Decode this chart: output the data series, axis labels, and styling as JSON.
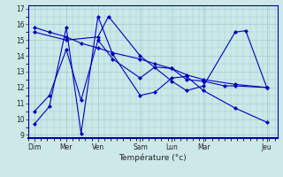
{
  "xlabel": "Température (°c)",
  "background_color": "#cce8e8",
  "grid_color": "#99cccc",
  "line_color": "#0000bb",
  "ylim": [
    8.8,
    17.2
  ],
  "yticks": [
    9,
    10,
    11,
    12,
    13,
    14,
    15,
    16,
    17
  ],
  "day_labels": [
    "Dim",
    "Mer",
    "Ven",
    "Sam",
    "Lun",
    "Mar",
    "Jeu"
  ],
  "day_positions": [
    0,
    15,
    30,
    50,
    65,
    80,
    110
  ],
  "xlim": [
    -3,
    115
  ],
  "series": [
    {
      "x": [
        0,
        7,
        15,
        22,
        30,
        37,
        50,
        57,
        65,
        72,
        80,
        95,
        110
      ],
      "y": [
        9.7,
        10.8,
        15.8,
        9.1,
        16.5,
        14.1,
        11.5,
        11.7,
        12.6,
        12.7,
        11.8,
        10.7,
        9.8
      ]
    },
    {
      "x": [
        0,
        7,
        15,
        22,
        30,
        37,
        50,
        57,
        65,
        72,
        80,
        90,
        95,
        110
      ],
      "y": [
        10.5,
        11.5,
        14.4,
        11.2,
        15.0,
        13.8,
        12.6,
        13.3,
        13.2,
        12.5,
        12.4,
        12.1,
        12.1,
        12.0
      ]
    },
    {
      "x": [
        0,
        7,
        15,
        22,
        30,
        37,
        50,
        57,
        65,
        72,
        80,
        95,
        110
      ],
      "y": [
        15.8,
        15.5,
        15.2,
        14.8,
        14.5,
        14.2,
        13.8,
        13.5,
        13.2,
        12.8,
        12.5,
        12.2,
        12.0
      ]
    },
    {
      "x": [
        0,
        15,
        30,
        35,
        50,
        65,
        72,
        80,
        95,
        100,
        110
      ],
      "y": [
        15.5,
        15.0,
        15.2,
        16.5,
        14.0,
        12.4,
        11.8,
        12.1,
        15.5,
        15.6,
        12.0
      ]
    }
  ]
}
